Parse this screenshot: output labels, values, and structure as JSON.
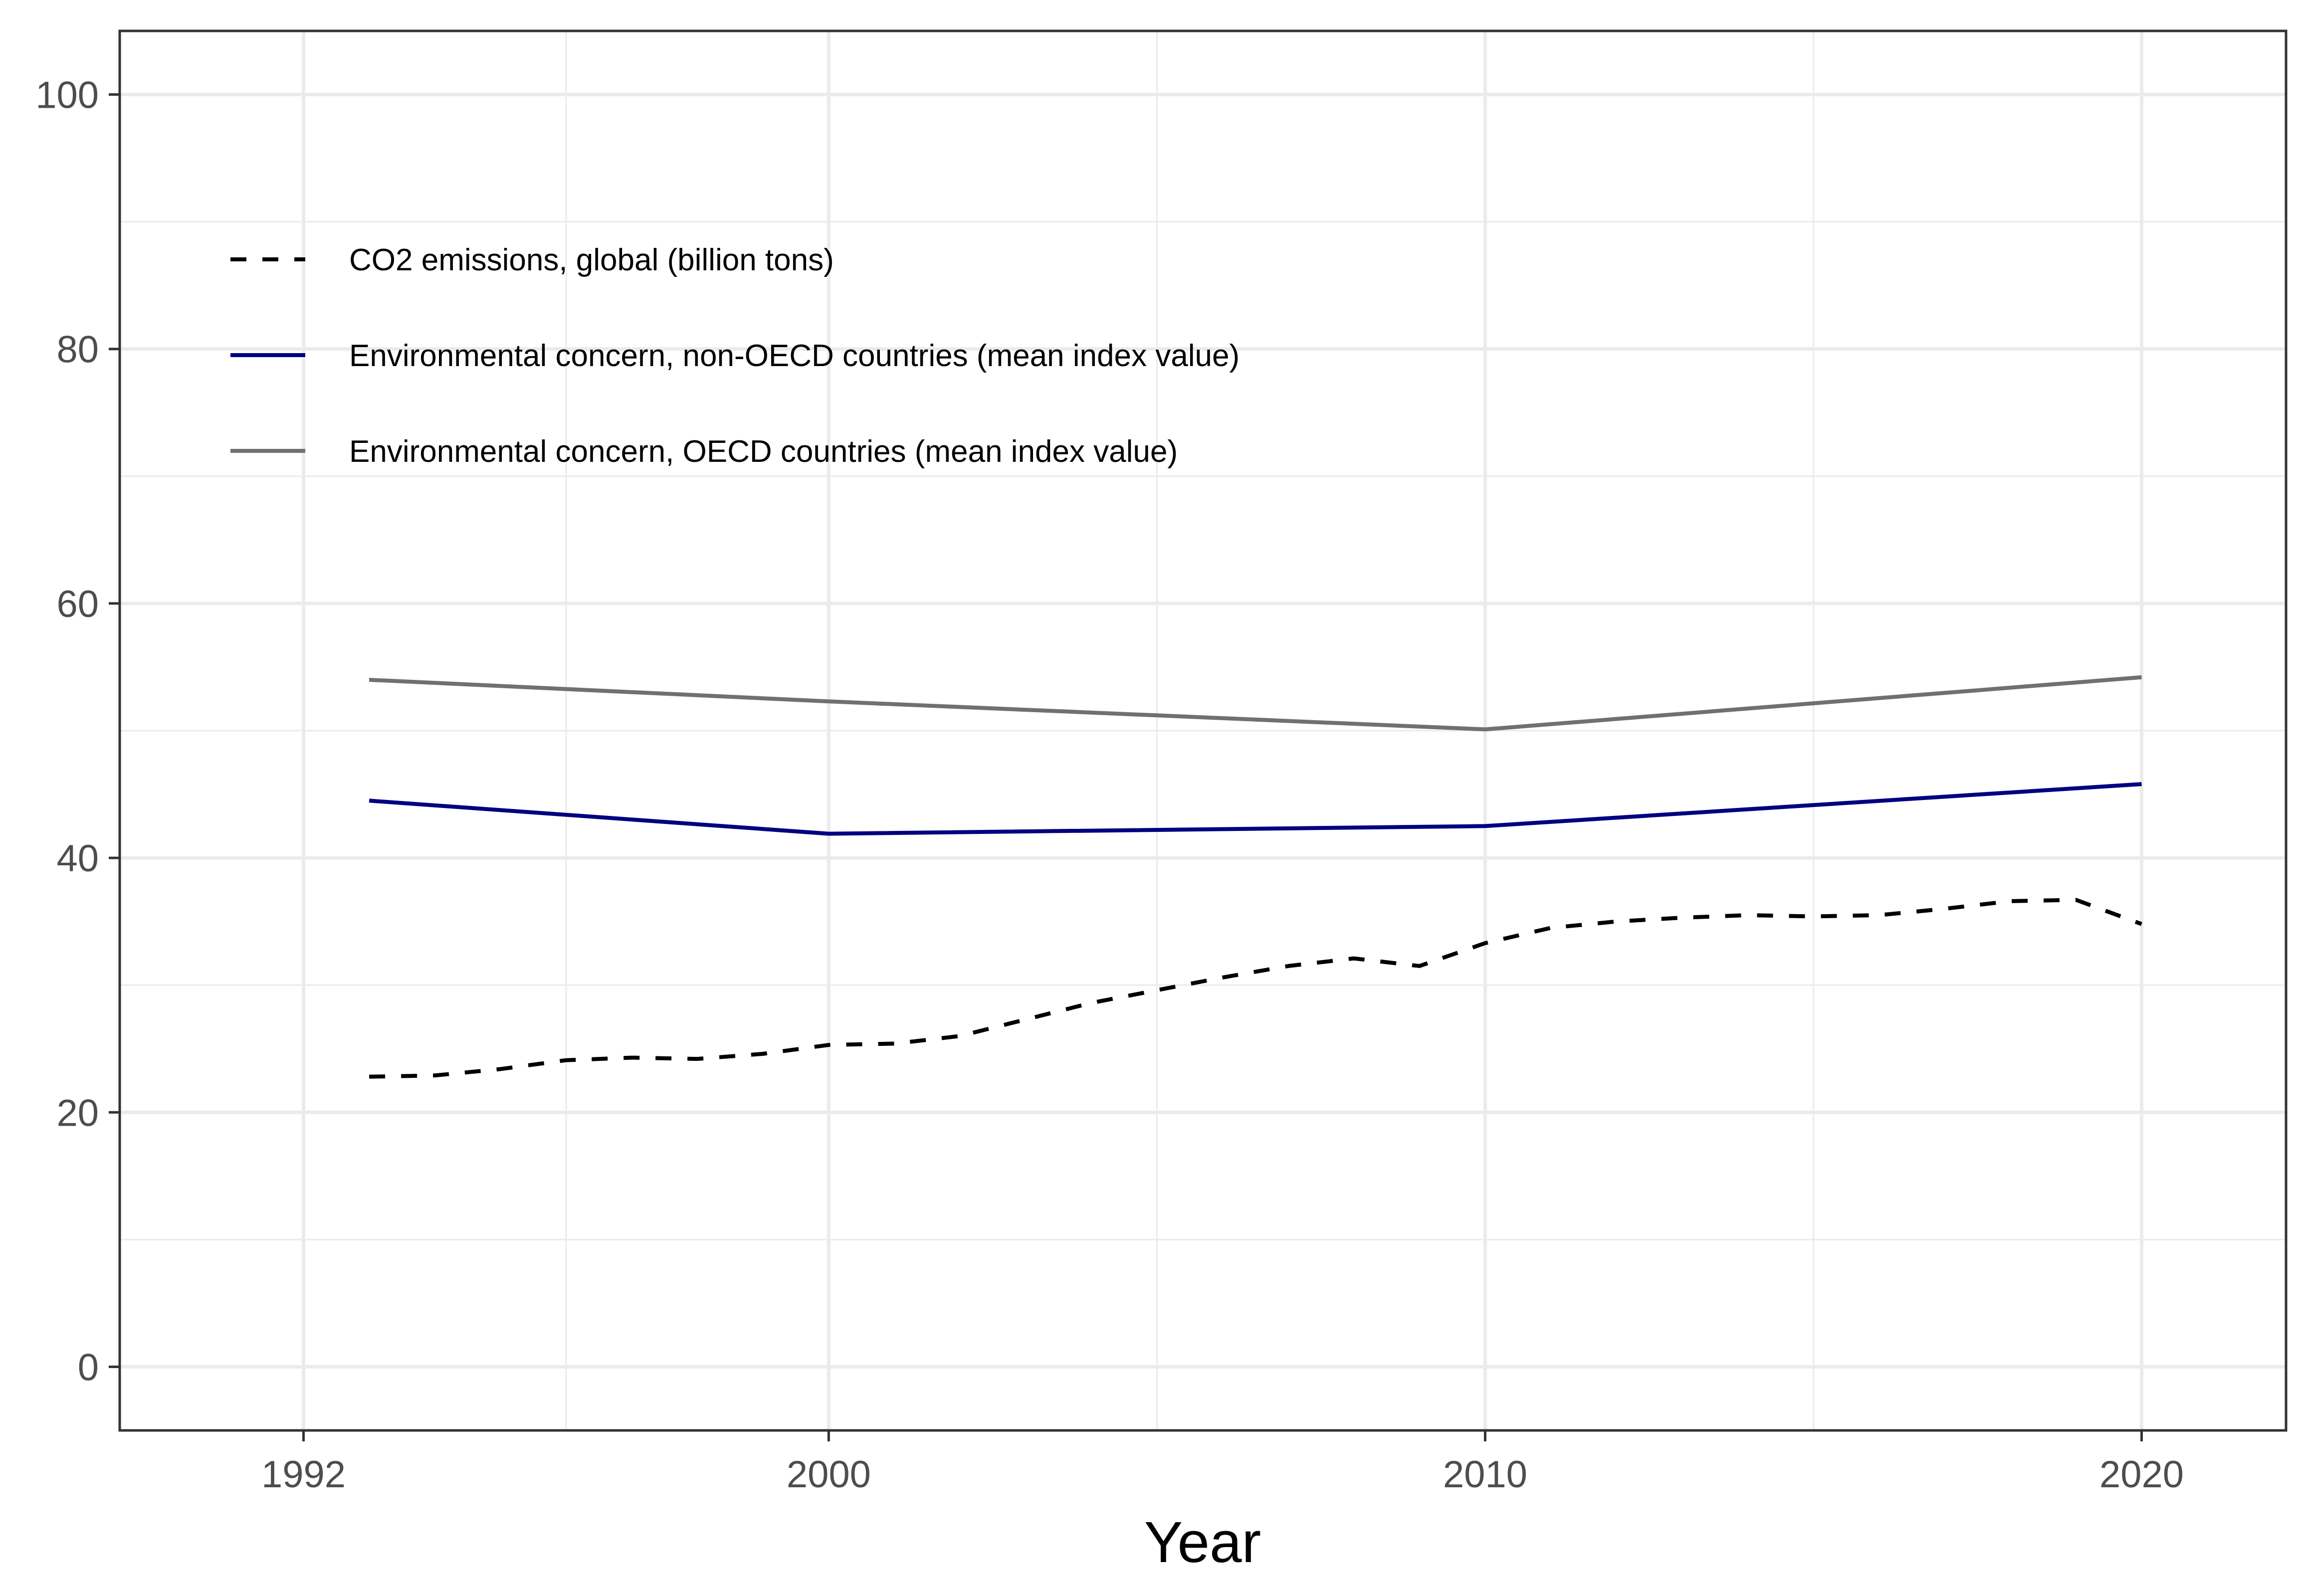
{
  "chart_data": {
    "type": "line",
    "xlabel": "Year",
    "ylabel": "",
    "title": "",
    "xlim": [
      1989.2,
      2022.2
    ],
    "ylim": [
      -5,
      105
    ],
    "x_ticks": [
      1992,
      2000,
      2010,
      2020
    ],
    "x_tick_labels": [
      "1992",
      "2000",
      "2010",
      "2020"
    ],
    "x_minor_ticks": [
      1996,
      2005,
      2015
    ],
    "y_ticks": [
      0,
      20,
      40,
      60,
      80,
      100
    ],
    "y_tick_labels": [
      "0",
      "20",
      "40",
      "60",
      "80",
      "100"
    ],
    "y_minor_ticks": [
      10,
      30,
      50,
      70,
      90
    ],
    "grid": true,
    "legend_position": "top-left",
    "series": [
      {
        "name": "CO2 emissions, global (billion tons)",
        "color": "#000000",
        "dashed": true,
        "x": [
          1993,
          1994,
          1995,
          1996,
          1997,
          1998,
          1999,
          2000,
          2001,
          2002,
          2003,
          2004,
          2005,
          2006,
          2007,
          2008,
          2009,
          2010,
          2011,
          2012,
          2013,
          2014,
          2015,
          2016,
          2017,
          2018,
          2019,
          2020
        ],
        "values": [
          22.8,
          22.9,
          23.4,
          24.1,
          24.3,
          24.2,
          24.6,
          25.3,
          25.4,
          26.0,
          27.3,
          28.6,
          29.6,
          30.6,
          31.5,
          32.1,
          31.5,
          33.3,
          34.5,
          35.0,
          35.3,
          35.5,
          35.4,
          35.5,
          36.0,
          36.6,
          36.7,
          34.8
        ]
      },
      {
        "name": "Environmental concern, non-OECD countries (mean index value)",
        "color": "#000080",
        "dashed": false,
        "x": [
          1993,
          2000,
          2010,
          2020
        ],
        "values": [
          44.5,
          41.9,
          42.5,
          45.8
        ]
      },
      {
        "name": "Environmental concern, OECD countries (mean index value)",
        "color": "#707070",
        "dashed": false,
        "x": [
          1993,
          2000,
          2010,
          2020
        ],
        "values": [
          54.0,
          52.3,
          50.1,
          54.2
        ]
      }
    ]
  }
}
